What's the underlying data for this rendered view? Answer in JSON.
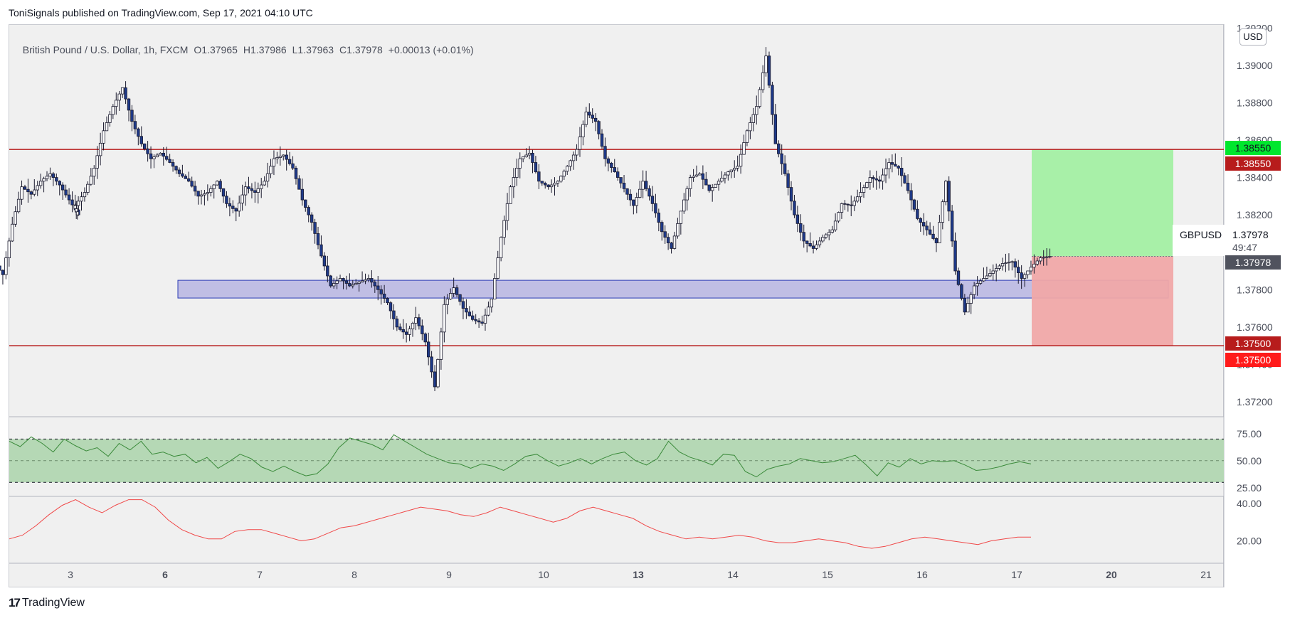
{
  "header": {
    "published": "ToniSignals published on TradingView.com, Sep 17, 2021 04:10 UTC"
  },
  "legend": {
    "symbol": "British Pound / U.S. Dollar, 1h, FXCM",
    "open": "O1.37965",
    "high": "H1.37986",
    "low": "L1.37963",
    "close": "C1.37978",
    "change": "+0.00013 (+0.01%)"
  },
  "currency_button": "USD",
  "symbol_label": {
    "ticker": "GBPUSD",
    "price": "1.37978",
    "countdown": "49:47"
  },
  "price_tags": {
    "target_green": "1.38550",
    "resistance": "1.38550",
    "current": "1.37978",
    "support": "1.37500",
    "stop": "1.37500"
  },
  "footer": {
    "logo": "TradingView"
  },
  "colors": {
    "bull_candle": "#ffffff",
    "bear_candle": "#1e3a8a",
    "candle_outline": "#1a1a2e",
    "level_line": "#b71c1c",
    "zone_fill": "#a09cdc",
    "zone_stroke": "#2a3bb5",
    "target_fill": "#a8f0a8",
    "stop_fill": "#f0a8a8",
    "rsi_line": "#3a8a3a",
    "rsi_band": "#b5d8b5",
    "second_line": "#f04848"
  },
  "chart_data": {
    "type": "candlestick",
    "symbol": "GBPUSD",
    "timeframe": "1h",
    "y_axis": {
      "ticks": [
        "1.39200",
        "1.39000",
        "1.38800",
        "1.38600",
        "1.38400",
        "1.38200",
        "1.38000",
        "1.37800",
        "1.37600",
        "1.37400",
        "1.37200"
      ],
      "range": [
        1.3712,
        1.3922
      ]
    },
    "x_axis": {
      "ticks": [
        "3",
        "6",
        "7",
        "8",
        "9",
        "10",
        "13",
        "14",
        "15",
        "16",
        "17",
        "20",
        "21"
      ],
      "bold_ticks": [
        "6",
        "13",
        "20"
      ]
    },
    "horizontal_levels": [
      1.3855,
      1.375
    ],
    "demand_zone": {
      "from_date": "7",
      "to_date": "20",
      "low": 1.37755,
      "high": 1.3785
    },
    "position": {
      "entry": 1.37978,
      "target": 1.3855,
      "stop": 1.375
    },
    "close_path_by_day": [
      {
        "day": "2",
        "values": [
          1.3795,
          1.3788,
          1.3815,
          1.3835,
          1.3831,
          1.3838,
          1.3842,
          1.3836,
          1.3828,
          1.382
        ]
      },
      {
        "day": "3",
        "values": [
          1.3825,
          1.3832,
          1.3845,
          1.3865,
          1.3878,
          1.3888,
          1.387,
          1.3858,
          1.385,
          1.3853
        ]
      },
      {
        "day": "6",
        "values": [
          1.3848,
          1.3842,
          1.3838,
          1.383,
          1.3832,
          1.3838,
          1.3826,
          1.3822,
          1.3835,
          1.3832
        ]
      },
      {
        "day": "7",
        "values": [
          1.3838,
          1.385,
          1.3852,
          1.3845,
          1.3828,
          1.3816,
          1.3798,
          1.3782,
          1.3786,
          1.3782
        ]
      },
      {
        "day": "8",
        "values": [
          1.3784,
          1.3786,
          1.378,
          1.3773,
          1.376,
          1.3756,
          1.3765,
          1.3752,
          1.3728,
          1.3772
        ]
      },
      {
        "day": "9",
        "values": [
          1.3781,
          1.377,
          1.3764,
          1.3762,
          1.3775,
          1.3808,
          1.3835,
          1.385,
          1.3853,
          1.3838
        ]
      },
      {
        "day": "10",
        "values": [
          1.3835,
          1.3838,
          1.3846,
          1.3855,
          1.3875,
          1.387,
          1.385,
          1.3843,
          1.3834,
          1.3825
        ]
      },
      {
        "day": "13",
        "values": [
          1.3838,
          1.3826,
          1.3811,
          1.3802,
          1.3822,
          1.384,
          1.3842,
          1.3833,
          1.3838,
          1.3843
        ]
      },
      {
        "day": "14",
        "values": [
          1.3846,
          1.3865,
          1.3878,
          1.3905,
          1.3858,
          1.3842,
          1.382,
          1.3806,
          1.3802,
          1.3808
        ]
      },
      {
        "day": "15",
        "values": [
          1.3812,
          1.3826,
          1.3825,
          1.3832,
          1.384,
          1.3838,
          1.3848,
          1.3845,
          1.3833,
          1.3818
        ]
      },
      {
        "day": "16",
        "values": [
          1.3812,
          1.3805,
          1.3838,
          1.379,
          1.3768,
          1.3782,
          1.3786,
          1.379,
          1.3794,
          1.3795
        ]
      },
      {
        "day": "17",
        "values": [
          1.3786,
          1.3792,
          1.3797,
          1.37978
        ]
      }
    ],
    "oscillator_1": {
      "ticks": [
        "75.00",
        "50.00",
        "25.00"
      ],
      "range": [
        17,
        88
      ],
      "band": [
        30,
        70
      ],
      "midline": 50,
      "values": [
        68,
        63,
        72,
        66,
        58,
        70,
        64,
        59,
        62,
        54,
        66,
        60,
        68,
        56,
        58,
        54,
        56,
        48,
        53,
        43,
        49,
        56,
        52,
        44,
        40,
        45,
        40,
        36,
        38,
        47,
        62,
        71,
        68,
        65,
        60,
        74,
        68,
        62,
        56,
        52,
        48,
        47,
        43,
        47,
        45,
        41,
        47,
        54,
        56,
        50,
        45,
        48,
        52,
        47,
        52,
        56,
        58,
        50,
        46,
        52,
        68,
        58,
        53,
        50,
        46,
        56,
        55,
        40,
        35,
        42,
        45,
        47,
        52,
        50,
        48,
        49,
        52,
        55,
        46,
        36,
        48,
        44,
        52,
        47,
        50,
        49,
        50,
        46,
        41,
        42,
        44,
        47,
        49,
        47
      ]
    },
    "oscillator_2": {
      "ticks": [
        "40.00",
        "20.00"
      ],
      "range": [
        8,
        43
      ],
      "values": [
        21,
        23,
        28,
        34,
        39,
        42,
        38,
        35,
        39,
        42,
        42,
        38,
        31,
        26,
        23,
        21,
        21,
        25,
        26,
        26,
        24,
        22,
        20,
        21,
        24,
        27,
        28,
        30,
        32,
        34,
        36,
        38,
        37,
        36,
        34,
        33,
        35,
        38,
        36,
        34,
        32,
        30,
        32,
        36,
        38,
        36,
        34,
        32,
        28,
        25,
        23,
        21,
        22,
        21,
        22,
        23,
        22,
        20,
        19,
        19,
        20,
        21,
        20,
        19,
        17,
        16,
        17,
        19,
        21,
        22,
        21,
        20,
        19,
        18,
        20,
        21,
        22,
        22
      ]
    }
  }
}
